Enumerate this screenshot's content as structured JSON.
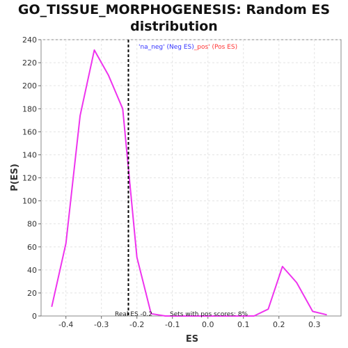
{
  "chart_data": {
    "type": "line",
    "title": "GO_TISSUE_MORPHOGENESIS: Random ES distribution",
    "xlabel": "ES",
    "ylabel": "P(ES)",
    "xlim": [
      -0.47,
      0.375
    ],
    "ylim": [
      0,
      240
    ],
    "xticks": [
      -0.4,
      -0.3,
      -0.2,
      -0.1,
      0.0,
      0.1,
      0.2,
      0.3
    ],
    "xtick_labels": [
      "-0.4",
      "-0.3",
      "-0.2",
      "-0.1",
      "0.0",
      "0.1",
      "0.2",
      "0.3"
    ],
    "yticks": [
      0,
      20,
      40,
      60,
      80,
      100,
      120,
      140,
      160,
      180,
      200,
      220,
      240
    ],
    "ytick_labels": [
      "0",
      "20",
      "40",
      "60",
      "80",
      "100",
      "120",
      "140",
      "160",
      "180",
      "200",
      "220",
      "240"
    ],
    "grid": true,
    "series": [
      {
        "color": "#ee33ee",
        "x": [
          -0.44,
          -0.4,
          -0.36,
          -0.32,
          -0.28,
          -0.24,
          -0.2,
          -0.16,
          -0.12,
          -0.08,
          -0.04,
          0.0,
          0.04,
          0.08,
          0.13,
          0.17,
          0.21,
          0.25,
          0.295,
          0.335
        ],
        "y": [
          8,
          63,
          174,
          231,
          209,
          180,
          51,
          2,
          0,
          0,
          0,
          0,
          0,
          0,
          0,
          6,
          43,
          29,
          4,
          1
        ]
      }
    ],
    "reference_line": {
      "x": -0.224,
      "color": "#000000",
      "style": "dashed"
    },
    "legend": {
      "position": "top-right",
      "neg_text": "'na_neg' (Neg ES)",
      "pos_text": "_pos' (Pos ES)",
      "neg_color": "#3333ff",
      "pos_color": "#ff3333"
    },
    "annotations": {
      "real_es": "Real ES -0.2",
      "pos_scores": "Sets with pos scores: 8%"
    }
  }
}
